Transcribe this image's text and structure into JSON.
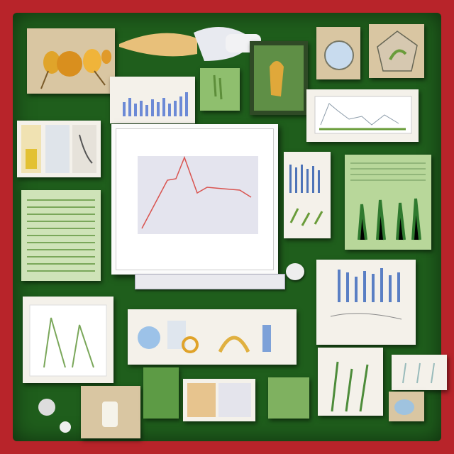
{
  "main_chart": {
    "title": "",
    "caption": "",
    "colors": {
      "line": "#d9534f",
      "plot_bg": "#e4e4ee"
    }
  },
  "colors": {
    "frame": "#b8242a",
    "board": "#1f5e1c"
  }
}
